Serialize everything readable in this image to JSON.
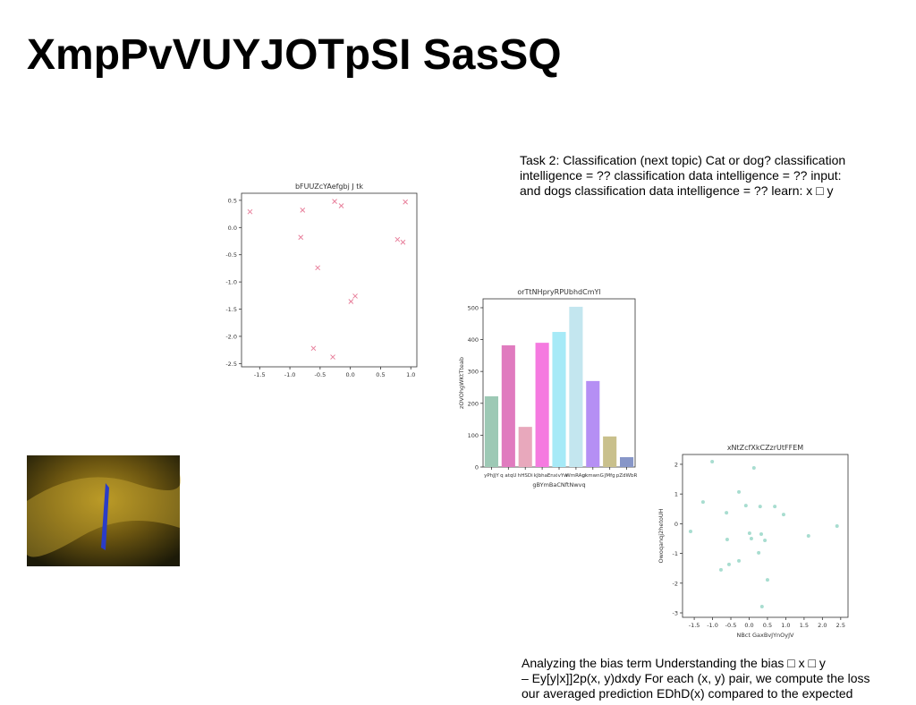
{
  "title": "XmpPvVUYJOTpSI SasSQ",
  "text_blocks": [
    {
      "lines": [
        "Task 2: Classification (next topic) Cat or dog? classification",
        "intelligence = ?? classification data intelligence = ?? input:",
        "and dogs classification data intelligence = ?? learn: x □ y"
      ]
    },
    {
      "lines": [
        "Analyzing the bias term Understanding the bias □ x □ y",
        "– Ey[y|x]]2p(x, y)dxdy For each (x, y) pair, we compute the loss",
        "our averaged prediction EDhD(x) compared to the expected"
      ]
    }
  ],
  "chart_data": [
    {
      "type": "scatter",
      "title": "bFUUZcYAefgbj J tk",
      "marker": "x",
      "color": "#e8809c",
      "x": [
        -1.66,
        -0.79,
        -0.82,
        -0.26,
        -0.15,
        0.91,
        -0.54,
        0.78,
        0.87,
        0.08,
        0.01,
        -0.61,
        -0.29
      ],
      "values": [
        0.29,
        0.32,
        -0.18,
        0.48,
        0.4,
        0.47,
        -0.74,
        -0.22,
        -0.27,
        -1.26,
        -1.36,
        -2.22,
        -2.38
      ],
      "xlim": [
        -1.8,
        1.1
      ],
      "ylim": [
        -2.56,
        0.63
      ],
      "xticks": [
        -1.5,
        {
          "value": -1,
          "label": "-1.0"
        },
        -0.5,
        {
          "value": 0,
          "label": "0.0"
        },
        0.5,
        {
          "value": 1,
          "label": "1.0"
        }
      ],
      "yticks": [
        0.5,
        {
          "value": 0,
          "label": "0.0"
        },
        -0.5,
        {
          "value": -1,
          "label": "-1.0"
        },
        -1.5,
        {
          "value": -2,
          "label": "-2.0"
        },
        -2.5
      ]
    },
    {
      "type": "bar",
      "title": "orTtNHpryRPUbhdCmYl",
      "xlabel": "gBYmBaCNftNwvq",
      "ylabel": "zOVOhgWKtTteab",
      "categories": [
        "yPhJjY",
        "q atqU",
        "hHSDi",
        "kJbhaE",
        "nxivYw",
        "WmRAgi",
        "ukmwnG",
        "JMfg",
        "pZdWbR"
      ],
      "values": [
        222,
        382,
        126,
        390,
        424,
        503,
        270,
        96,
        31
      ],
      "colors": [
        "#9dc9b5",
        "#e07bbf",
        "#e8a8bc",
        "#f57ae0",
        "#a6eaf7",
        "#c3e6ef",
        "#b58ff4",
        "#c9c08c",
        "#8796c8"
      ],
      "ylim": [
        0,
        528
      ],
      "yticks": [
        0,
        100,
        200,
        300,
        400,
        500
      ]
    },
    {
      "type": "scatter",
      "title": "xNtZcfXkCZzrUtFFEM",
      "xlabel": "NBct GaxBvJYnOyJV",
      "ylabel": "Owoqanqj2hetoUH",
      "marker": "o",
      "color": "#a8ddd0",
      "x": [
        -1.6,
        -1.26,
        -1.01,
        -0.62,
        -0.6,
        -0.77,
        -0.55,
        -0.28,
        -0.28,
        -0.09,
        0.01,
        0.06,
        0.13,
        0.26,
        0.33,
        0.43,
        0.3,
        0.5,
        0.35,
        0.7,
        0.94,
        1.62,
        2.4
      ],
      "values": [
        -0.26,
        0.73,
        2.09,
        0.37,
        -0.53,
        -1.55,
        -1.37,
        -1.25,
        1.07,
        0.61,
        -0.32,
        -0.5,
        1.88,
        -0.98,
        -0.35,
        -0.56,
        0.58,
        -1.89,
        -2.79,
        0.58,
        0.31,
        -0.41,
        -0.08
      ],
      "xlim": [
        -1.82,
        2.7
      ],
      "ylim": [
        -3.15,
        2.33
      ],
      "xticks": [
        -1.5,
        {
          "value": -1,
          "label": "-1.0"
        },
        -0.5,
        {
          "value": 0,
          "label": "0.0"
        },
        0.5,
        {
          "value": 1,
          "label": "1.0"
        },
        1.5,
        {
          "value": 2,
          "label": "2.0"
        },
        2.5
      ],
      "yticks": [
        2,
        1,
        0,
        -1,
        -2,
        -3
      ]
    }
  ]
}
